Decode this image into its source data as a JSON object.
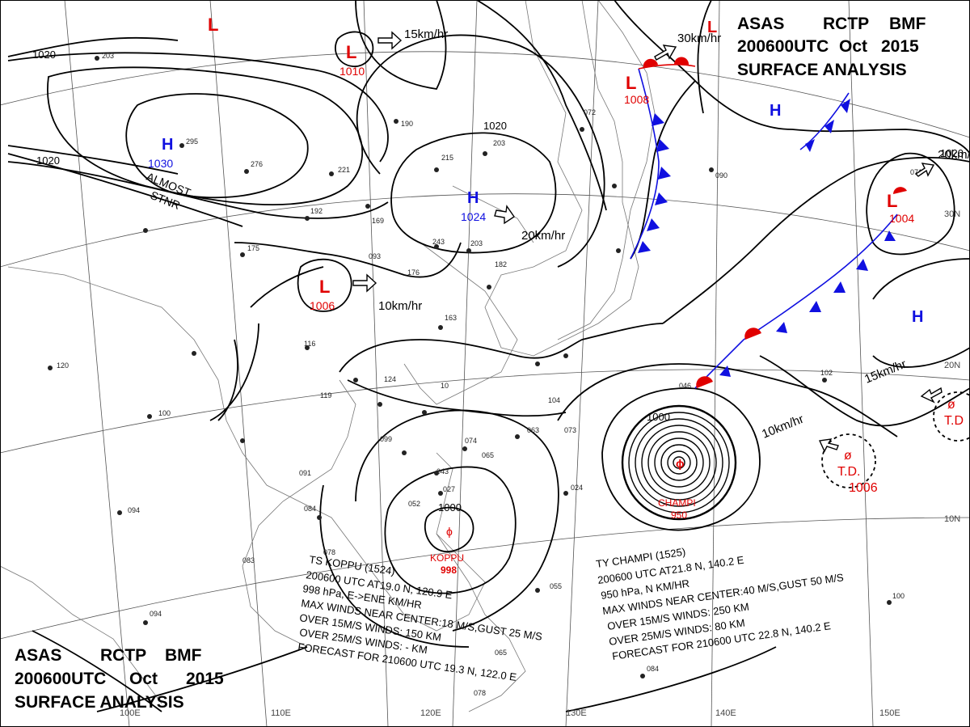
{
  "header": {
    "line1": [
      "ASAS",
      "RCTP",
      "BMF"
    ],
    "line2": [
      "200600UTC",
      "Oct",
      "2015"
    ],
    "line3": "SURFACE  ANALYSIS"
  },
  "pressure_centers": [
    {
      "type": "L",
      "value": ""
    },
    {
      "type": "L",
      "value": "1010"
    },
    {
      "type": "H",
      "value": "1030"
    },
    {
      "type": "H",
      "value": "1024"
    },
    {
      "type": "L",
      "value": "1006"
    },
    {
      "type": "L",
      "value": "1008"
    },
    {
      "type": "H",
      "value": ""
    },
    {
      "type": "L",
      "value": "1004"
    },
    {
      "type": "H",
      "value": ""
    },
    {
      "type": "L",
      "value": ""
    }
  ],
  "isobar_labels": [
    "1020",
    "1020",
    "1020",
    "1020",
    "1000",
    "1000"
  ],
  "movements": [
    "15km/hr",
    "20km/hr",
    "10km/hr",
    "30km/hr",
    "20km/hr",
    "15km/hr",
    "10km/hr"
  ],
  "stationary_label": [
    "ALMOST",
    "STNR"
  ],
  "storms": {
    "champi": {
      "name": "CHAMPI",
      "pressure": "950"
    },
    "koppu": {
      "name": "KOPPU",
      "pressure": "998"
    },
    "td": {
      "name": "T.D.",
      "pressure": "1006"
    }
  },
  "koppu_advisory": [
    "TS  KOPPU  (1524)",
    "200600 UTC  AT19.0 N, 120.9 E",
    "998 hPa, E->ENE   KM/HR",
    "MAX WINDS NEAR CENTER:18 M/S,GUST 25 M/S",
    "OVER 15M/S WINDS: 150 KM",
    "OVER 25M/S WINDS: - KM",
    "FORECAST FOR 210600 UTC 19.3 N, 122.0 E"
  ],
  "champi_advisory": [
    "TY  CHAMPI  (1525)",
    "200600 UTC  AT21.8 N, 140.2 E",
    "950 hPa, N  KM/HR",
    "MAX WINDS NEAR CENTER:40 M/S,GUST 50 M/S",
    "OVER 15M/S WINDS: 250 KM",
    "OVER 25M/S WINDS: 80 KM",
    "FORECAST FOR 210600 UTC 22.8 N, 140.2 E"
  ],
  "longitude_labels": [
    "100E",
    "110E",
    "120E",
    "130E",
    "140E",
    "150E"
  ],
  "latitude_labels": [
    "30N",
    "20N",
    "10N"
  ],
  "colors": {
    "low": "#e00000",
    "high": "#1010e0",
    "front_cold": "#1010e0",
    "front_warm": "#e00000"
  }
}
